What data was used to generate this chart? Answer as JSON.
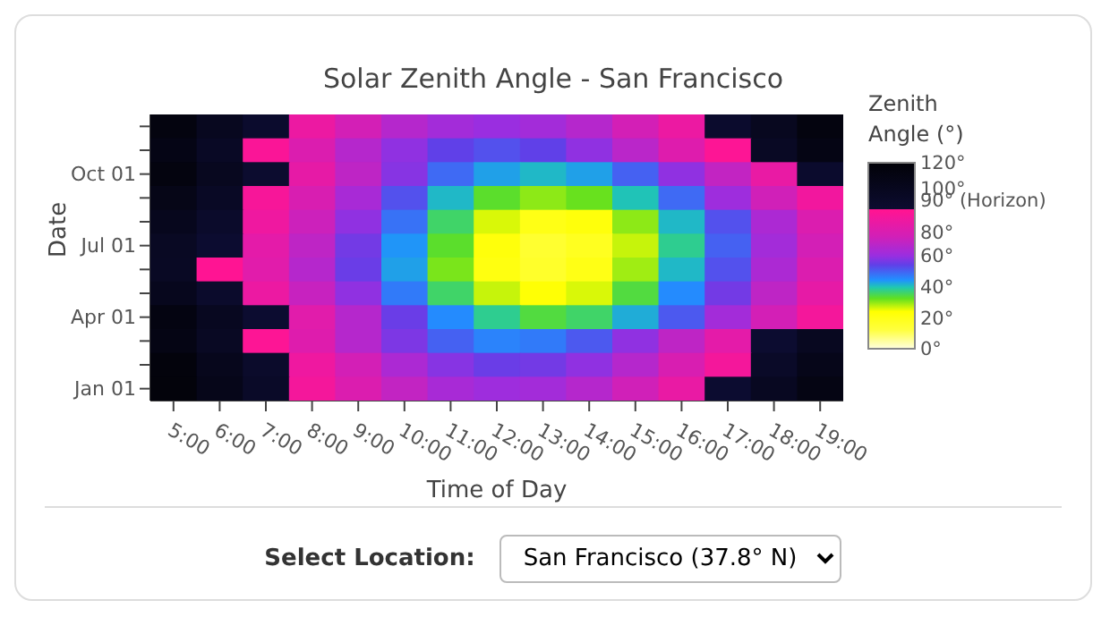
{
  "chart_data": {
    "type": "heatmap",
    "title": "Solar Zenith Angle - San Francisco",
    "xlabel": "Time of Day",
    "ylabel": "Date",
    "clabel": "Zenith Angle (°)",
    "categories": [
      "5:00",
      "6:00",
      "7:00",
      "8:00",
      "9:00",
      "10:00",
      "11:00",
      "12:00",
      "13:00",
      "14:00",
      "15:00",
      "16:00",
      "17:00",
      "18:00",
      "19:00"
    ],
    "y_categories": [
      null,
      null,
      "Oct 01",
      null,
      null,
      "Jul 01",
      null,
      null,
      "Apr 01",
      null,
      null,
      "Jan 01"
    ],
    "cells": [
      [
        115,
        103,
        92,
        82,
        73,
        66,
        62,
        60,
        62,
        66,
        73,
        82,
        92,
        103,
        115
      ],
      [
        110,
        98,
        87,
        76,
        66,
        59,
        54,
        52,
        54,
        59,
        67,
        77,
        88,
        99,
        111
      ],
      [
        115,
        103,
        91,
        80,
        68,
        58,
        49,
        43,
        41,
        43,
        50,
        59,
        69,
        81,
        92
      ],
      [
        109,
        98,
        86,
        75,
        63,
        52,
        41,
        33,
        30,
        32,
        40,
        49,
        61,
        72,
        84
      ],
      [
        104,
        94,
        83,
        71,
        59,
        48,
        36,
        26,
        20,
        22,
        30,
        41,
        52,
        64,
        76
      ],
      [
        100,
        90,
        79,
        68,
        56,
        44,
        33,
        22,
        15,
        18,
        27,
        38,
        50,
        62,
        73
      ],
      [
        99,
        89,
        78,
        66,
        55,
        43,
        31,
        21,
        16,
        20,
        29,
        41,
        52,
        64,
        76
      ],
      [
        104,
        93,
        82,
        70,
        59,
        47,
        36,
        27,
        23,
        26,
        34,
        45,
        56,
        68,
        80
      ],
      [
        113,
        102,
        90,
        78,
        66,
        55,
        45,
        38,
        34,
        36,
        42,
        51,
        62,
        73,
        85
      ],
      [
        111,
        100,
        88,
        77,
        66,
        57,
        50,
        46,
        47,
        51,
        59,
        68,
        79,
        90,
        102
      ],
      [
        117,
        105,
        94,
        83,
        73,
        64,
        58,
        55,
        56,
        59,
        66,
        75,
        85,
        96,
        107
      ],
      [
        118,
        107,
        96,
        85,
        76,
        69,
        63,
        61,
        62,
        66,
        72,
        81,
        90,
        101,
        112
      ]
    ],
    "clim": [
      0,
      120
    ],
    "cticks": [
      {
        "value": 0,
        "label": "0°"
      },
      {
        "value": 20,
        "label": "20°"
      },
      {
        "value": 40,
        "label": "40°"
      },
      {
        "value": 60,
        "label": "60°"
      },
      {
        "value": 80,
        "label": "80°"
      },
      {
        "value": 90,
        "label": "90° (Horizon)"
      },
      {
        "value": 100,
        "label": "100°"
      },
      {
        "value": 120,
        "label": "120°"
      }
    ],
    "annotations": [
      "Select Location:",
      "San Francisco (37.8° N)"
    ]
  }
}
